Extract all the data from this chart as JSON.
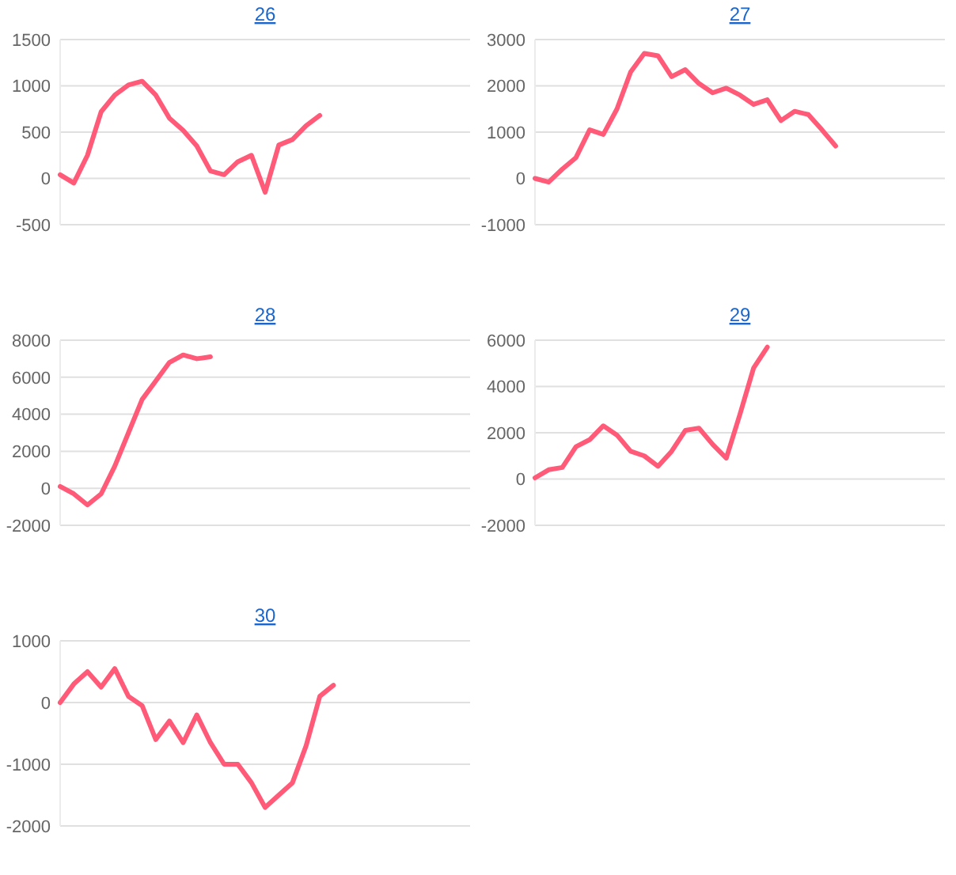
{
  "chart_data": [
    {
      "type": "line",
      "title": "26",
      "categories": [
        null,
        null,
        null,
        null,
        null,
        null,
        null,
        null,
        null,
        null,
        null,
        null,
        null,
        null,
        null,
        null,
        null,
        null,
        null,
        null,
        null,
        null,
        null,
        null,
        null,
        null,
        null,
        null,
        null,
        null,
        null
      ],
      "series": [
        {
          "color": "#ff5a78",
          "values": [
            40,
            -50,
            250,
            720,
            900,
            1010,
            1050,
            900,
            650,
            520,
            350,
            80,
            40,
            180,
            250,
            -150,
            360,
            420,
            570,
            680,
            null,
            null,
            null,
            null,
            null,
            null,
            null,
            null,
            null,
            null,
            null
          ]
        }
      ],
      "ylim": [
        -500,
        1500
      ],
      "yticks": [
        -500,
        0,
        500,
        1000,
        1500
      ],
      "grid": "y",
      "marker": "none",
      "line_style": "solid"
    },
    {
      "type": "line",
      "title": "27",
      "categories": [
        null,
        null,
        null,
        null,
        null,
        null,
        null,
        null,
        null,
        null,
        null,
        null,
        null,
        null,
        null,
        null,
        null,
        null,
        null,
        null,
        null,
        null,
        null,
        null,
        null,
        null,
        null,
        null,
        null,
        null,
        null
      ],
      "series": [
        {
          "color": "#ff5a78",
          "values": [
            0,
            -80,
            200,
            450,
            1050,
            950,
            1500,
            2300,
            2700,
            2650,
            2200,
            2350,
            2050,
            1850,
            1950,
            1800,
            1600,
            1700,
            1250,
            1450,
            1380,
            1050,
            700,
            null,
            null,
            null,
            null,
            null,
            null,
            null,
            null
          ]
        }
      ],
      "ylim": [
        -1000,
        3000
      ],
      "yticks": [
        -1000,
        0,
        1000,
        2000,
        3000
      ],
      "grid": "y",
      "marker": "none",
      "line_style": "solid"
    },
    {
      "type": "line",
      "title": "28",
      "categories": [
        null,
        null,
        null,
        null,
        null,
        null,
        null,
        null,
        null,
        null,
        null,
        null,
        null,
        null,
        null,
        null,
        null,
        null,
        null,
        null,
        null,
        null,
        null,
        null,
        null,
        null,
        null,
        null,
        null,
        null,
        null
      ],
      "series": [
        {
          "color": "#ff5a78",
          "values": [
            100,
            -300,
            -900,
            -300,
            1200,
            3000,
            4800,
            5800,
            6800,
            7200,
            7000,
            7100,
            null,
            null,
            null,
            null,
            null,
            null,
            null,
            null,
            null,
            null,
            null,
            null,
            null,
            null,
            null,
            null,
            null,
            null,
            null
          ]
        }
      ],
      "ylim": [
        -2000,
        8000
      ],
      "yticks": [
        -2000,
        0,
        2000,
        4000,
        6000,
        8000
      ],
      "grid": "y",
      "marker": "none",
      "line_style": "solid"
    },
    {
      "type": "line",
      "title": "29",
      "categories": [
        null,
        null,
        null,
        null,
        null,
        null,
        null,
        null,
        null,
        null,
        null,
        null,
        null,
        null,
        null,
        null,
        null,
        null,
        null,
        null,
        null,
        null,
        null,
        null,
        null,
        null,
        null,
        null,
        null,
        null,
        null
      ],
      "series": [
        {
          "color": "#ff5a78",
          "values": [
            50,
            400,
            500,
            1400,
            1700,
            2300,
            1900,
            1200,
            1000,
            550,
            1200,
            2100,
            2200,
            1500,
            900,
            2800,
            4800,
            5700,
            null,
            null,
            null,
            null,
            null,
            null,
            null,
            null,
            null,
            null,
            null,
            null,
            null
          ]
        }
      ],
      "ylim": [
        -2000,
        6000
      ],
      "yticks": [
        -2000,
        0,
        2000,
        4000,
        6000
      ],
      "grid": "y",
      "marker": "none",
      "line_style": "solid"
    },
    {
      "type": "line",
      "title": "30",
      "categories": [
        null,
        null,
        null,
        null,
        null,
        null,
        null,
        null,
        null,
        null,
        null,
        null,
        null,
        null,
        null,
        null,
        null,
        null,
        null,
        null,
        null,
        null,
        null,
        null,
        null,
        null,
        null,
        null,
        null,
        null,
        null
      ],
      "series": [
        {
          "color": "#ff5a78",
          "values": [
            0,
            300,
            500,
            250,
            550,
            100,
            -50,
            -600,
            -300,
            -650,
            -200,
            -650,
            -1000,
            -1000,
            -1300,
            -1700,
            -1500,
            -1300,
            -700,
            100,
            280,
            null,
            null,
            null,
            null,
            null,
            null,
            null,
            null,
            null,
            null
          ]
        }
      ],
      "ylim": [
        -2000,
        1000
      ],
      "yticks": [
        -2000,
        -1000,
        0,
        1000
      ],
      "grid": "y",
      "marker": "none",
      "line_style": "solid"
    }
  ]
}
